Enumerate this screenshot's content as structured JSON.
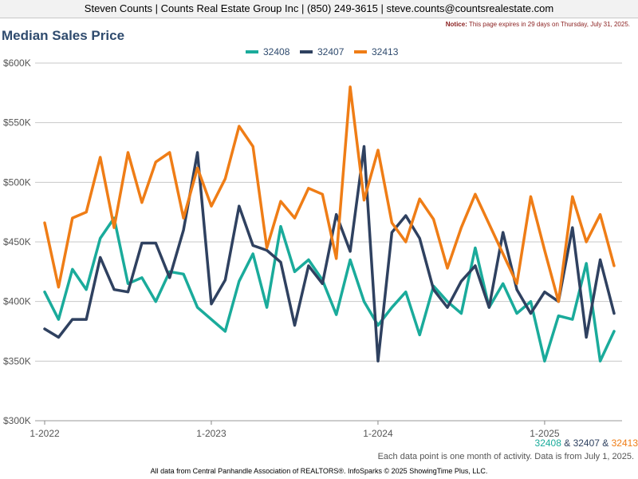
{
  "header": {
    "agent_line": "Steven Counts | Counts Real Estate Group Inc | (850) 249-3615 | steve.counts@countsrealestate.com",
    "notice_label": "Notice:",
    "notice_text": " This page expires in 29 days on Thursday, July 31, 2025."
  },
  "colors": {
    "32408": "#1aab9b",
    "32407": "#2f4160",
    "32413": "#ef7d16"
  },
  "bottom_legend": {
    "zip1": "32408",
    "amp1": " & ",
    "zip2": "32407",
    "amp2": " & ",
    "zip3": "32413"
  },
  "footer": {
    "note": "Each data point is one month of activity. Data is from July 1, 2025.",
    "source": "All data from Central Panhandle Association of REALTORS®. InfoSparks © 2025 ShowingTime Plus, LLC."
  },
  "chart_data": {
    "type": "line",
    "title": "Median Sales Price",
    "xlabel": "",
    "ylabel": "",
    "ylim": [
      300000,
      600000
    ],
    "y_ticks": [
      300000,
      350000,
      400000,
      450000,
      500000,
      550000,
      600000
    ],
    "y_tick_labels": [
      "$300K",
      "$350K",
      "$400K",
      "$450K",
      "$500K",
      "$550K",
      "$600K"
    ],
    "x_tick_labels": [
      "1-2022",
      "1-2023",
      "1-2024",
      "1-2025"
    ],
    "x_tick_positions": [
      "2022-01",
      "2023-01",
      "2024-01",
      "2025-01"
    ],
    "x": [
      "2022-01",
      "2022-02",
      "2022-03",
      "2022-04",
      "2022-05",
      "2022-06",
      "2022-07",
      "2022-08",
      "2022-09",
      "2022-10",
      "2022-11",
      "2022-12",
      "2023-01",
      "2023-02",
      "2023-03",
      "2023-04",
      "2023-05",
      "2023-06",
      "2023-07",
      "2023-08",
      "2023-09",
      "2023-10",
      "2023-11",
      "2023-12",
      "2024-01",
      "2024-02",
      "2024-03",
      "2024-04",
      "2024-05",
      "2024-06",
      "2024-07",
      "2024-08",
      "2024-09",
      "2024-10",
      "2024-11",
      "2024-12",
      "2025-01",
      "2025-02",
      "2025-03",
      "2025-04",
      "2025-05",
      "2025-06"
    ],
    "grid": "horizontal",
    "legend": "top-center",
    "series": [
      {
        "name": "32408",
        "color": "#1aab9b",
        "values": [
          408000,
          385000,
          427000,
          410000,
          453000,
          470000,
          415000,
          420000,
          400000,
          425000,
          423000,
          395000,
          385000,
          375000,
          417000,
          440000,
          395000,
          463000,
          425000,
          435000,
          418000,
          389000,
          435000,
          400000,
          380000,
          395000,
          408000,
          372000,
          413000,
          400000,
          390000,
          445000,
          395000,
          415000,
          390000,
          400000,
          350000,
          388000,
          385000,
          432000,
          350000,
          375000
        ]
      },
      {
        "name": "32407",
        "color": "#2f4160",
        "values": [
          377000,
          370000,
          385000,
          385000,
          437000,
          410000,
          408000,
          449000,
          449000,
          420000,
          460000,
          525000,
          398000,
          418000,
          480000,
          447000,
          443000,
          433000,
          380000,
          430000,
          415000,
          473000,
          442000,
          530000,
          350000,
          458000,
          472000,
          453000,
          410000,
          395000,
          417000,
          430000,
          395000,
          458000,
          410000,
          390000,
          408000,
          400000,
          462000,
          370000,
          435000,
          390000
        ]
      },
      {
        "name": "32413",
        "color": "#ef7d16",
        "values": [
          466000,
          412000,
          470000,
          475000,
          521000,
          462000,
          525000,
          483000,
          517000,
          525000,
          470000,
          512000,
          480000,
          503000,
          547000,
          530000,
          445000,
          484000,
          470000,
          495000,
          490000,
          436000,
          580000,
          485000,
          527000,
          466000,
          450000,
          486000,
          469000,
          428000,
          462000,
          490000,
          465000,
          440000,
          415000,
          488000,
          443000,
          400000,
          488000,
          450000,
          473000,
          430000
        ]
      }
    ]
  }
}
